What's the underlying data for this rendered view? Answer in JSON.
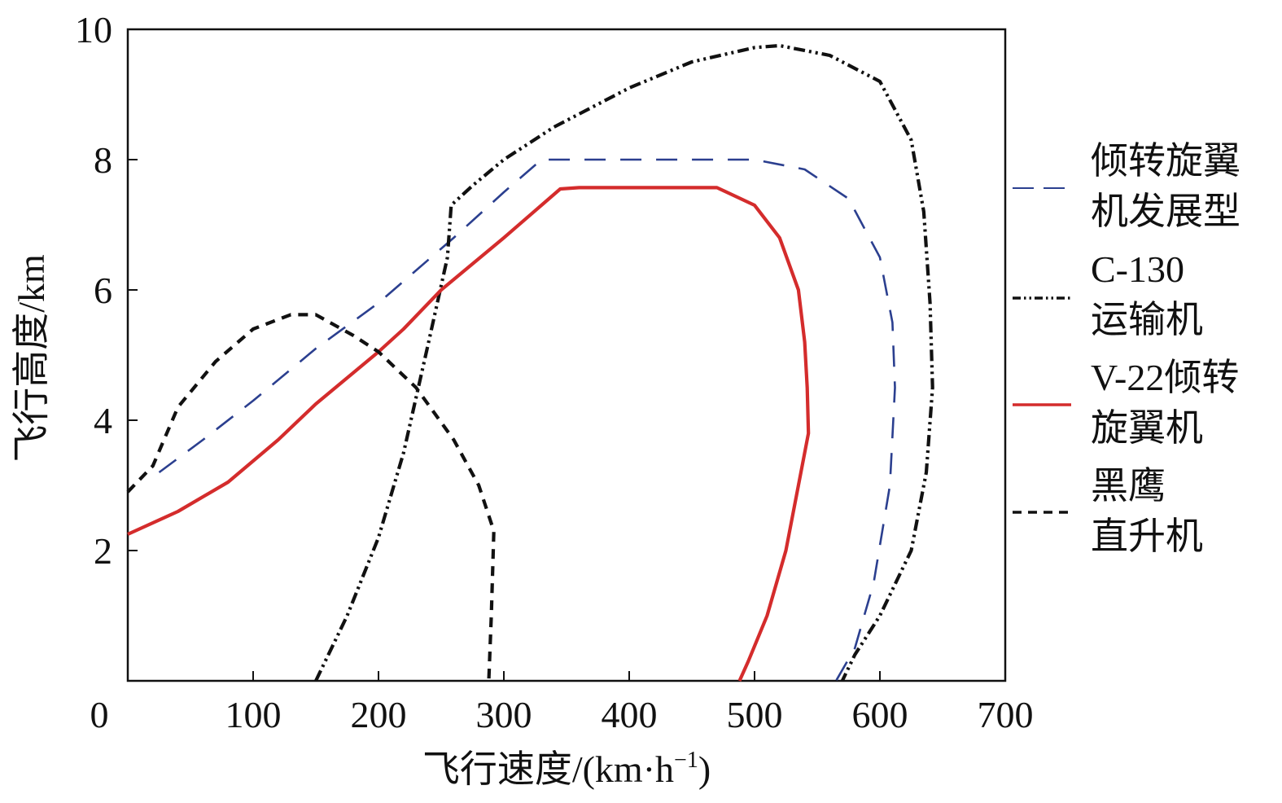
{
  "chart_data": {
    "type": "line",
    "title": "",
    "xlabel": "飞行速度/(km·h",
    "xlabel_sup": "−1",
    "xlabel_end": ")",
    "ylabel": "飞行高度/km",
    "xlim": [
      0,
      700
    ],
    "ylim": [
      0,
      10
    ],
    "x_ticks": [
      0,
      100,
      200,
      300,
      400,
      500,
      600,
      700
    ],
    "y_ticks": [
      2,
      4,
      6,
      8,
      10
    ],
    "x_tick_labels": [
      "0",
      "100",
      "200",
      "300",
      "400",
      "500",
      "600",
      "700"
    ],
    "y_tick_labels": [
      "2",
      "4",
      "6",
      "8",
      "10"
    ],
    "grid": false,
    "legend_position": "right",
    "series": [
      {
        "name": "倾转旋翼机发展型",
        "name_lines": [
          "倾转旋翼",
          "机发展型"
        ],
        "color": "#2b3f8f",
        "dash": "dashed",
        "points": [
          [
            25,
            3.2
          ],
          [
            60,
            3.7
          ],
          [
            100,
            4.3
          ],
          [
            150,
            5.1
          ],
          [
            200,
            5.8
          ],
          [
            260,
            6.8
          ],
          [
            300,
            7.5
          ],
          [
            330,
            8.0
          ],
          [
            400,
            8.0
          ],
          [
            500,
            8.0
          ],
          [
            540,
            7.85
          ],
          [
            575,
            7.4
          ],
          [
            600,
            6.5
          ],
          [
            610,
            5.5
          ],
          [
            612,
            4.5
          ],
          [
            608,
            3.0
          ],
          [
            595,
            1.5
          ],
          [
            580,
            0.5
          ],
          [
            565,
            0
          ]
        ]
      },
      {
        "name": "C-130运输机",
        "name_lines": [
          "C-130",
          "运输机"
        ],
        "color": "#111111",
        "dash": "dashdotdot",
        "points": [
          [
            150,
            0
          ],
          [
            175,
            1.0
          ],
          [
            200,
            2.2
          ],
          [
            220,
            3.5
          ],
          [
            240,
            5.2
          ],
          [
            255,
            6.5
          ],
          [
            258,
            7.3
          ],
          [
            275,
            7.6
          ],
          [
            300,
            8.0
          ],
          [
            340,
            8.5
          ],
          [
            400,
            9.1
          ],
          [
            450,
            9.5
          ],
          [
            500,
            9.72
          ],
          [
            520,
            9.75
          ],
          [
            560,
            9.6
          ],
          [
            600,
            9.2
          ],
          [
            625,
            8.3
          ],
          [
            635,
            7.2
          ],
          [
            640,
            5.8
          ],
          [
            642,
            4.5
          ],
          [
            637,
            3.2
          ],
          [
            625,
            2.0
          ],
          [
            600,
            1.0
          ],
          [
            580,
            0.4
          ],
          [
            570,
            0
          ]
        ]
      },
      {
        "name": "V-22倾转旋翼机",
        "name_lines": [
          "V-22倾转",
          "旋翼机"
        ],
        "color": "#d42c2c",
        "dash": "solid",
        "points": [
          [
            0,
            2.25
          ],
          [
            40,
            2.6
          ],
          [
            80,
            3.05
          ],
          [
            120,
            3.7
          ],
          [
            150,
            4.25
          ],
          [
            200,
            5.05
          ],
          [
            220,
            5.4
          ],
          [
            250,
            6.0
          ],
          [
            300,
            6.8
          ],
          [
            330,
            7.3
          ],
          [
            345,
            7.55
          ],
          [
            360,
            7.57
          ],
          [
            470,
            7.57
          ],
          [
            500,
            7.3
          ],
          [
            520,
            6.8
          ],
          [
            535,
            6.0
          ],
          [
            540,
            5.2
          ],
          [
            542,
            4.5
          ],
          [
            543,
            3.8
          ],
          [
            535,
            3.0
          ],
          [
            525,
            2.0
          ],
          [
            510,
            1.0
          ],
          [
            495,
            0.3
          ],
          [
            488,
            0
          ]
        ]
      },
      {
        "name": "黑鹰直升机",
        "name_lines": [
          "黑鹰",
          "直升机"
        ],
        "color": "#111111",
        "dash": "dashed-short",
        "points": [
          [
            0,
            2.9
          ],
          [
            20,
            3.3
          ],
          [
            40,
            4.2
          ],
          [
            70,
            4.9
          ],
          [
            100,
            5.4
          ],
          [
            130,
            5.62
          ],
          [
            150,
            5.62
          ],
          [
            180,
            5.3
          ],
          [
            200,
            5.05
          ],
          [
            230,
            4.5
          ],
          [
            260,
            3.7
          ],
          [
            280,
            3.0
          ],
          [
            292,
            2.3
          ],
          [
            290,
            1.0
          ],
          [
            288,
            0
          ]
        ]
      }
    ]
  }
}
